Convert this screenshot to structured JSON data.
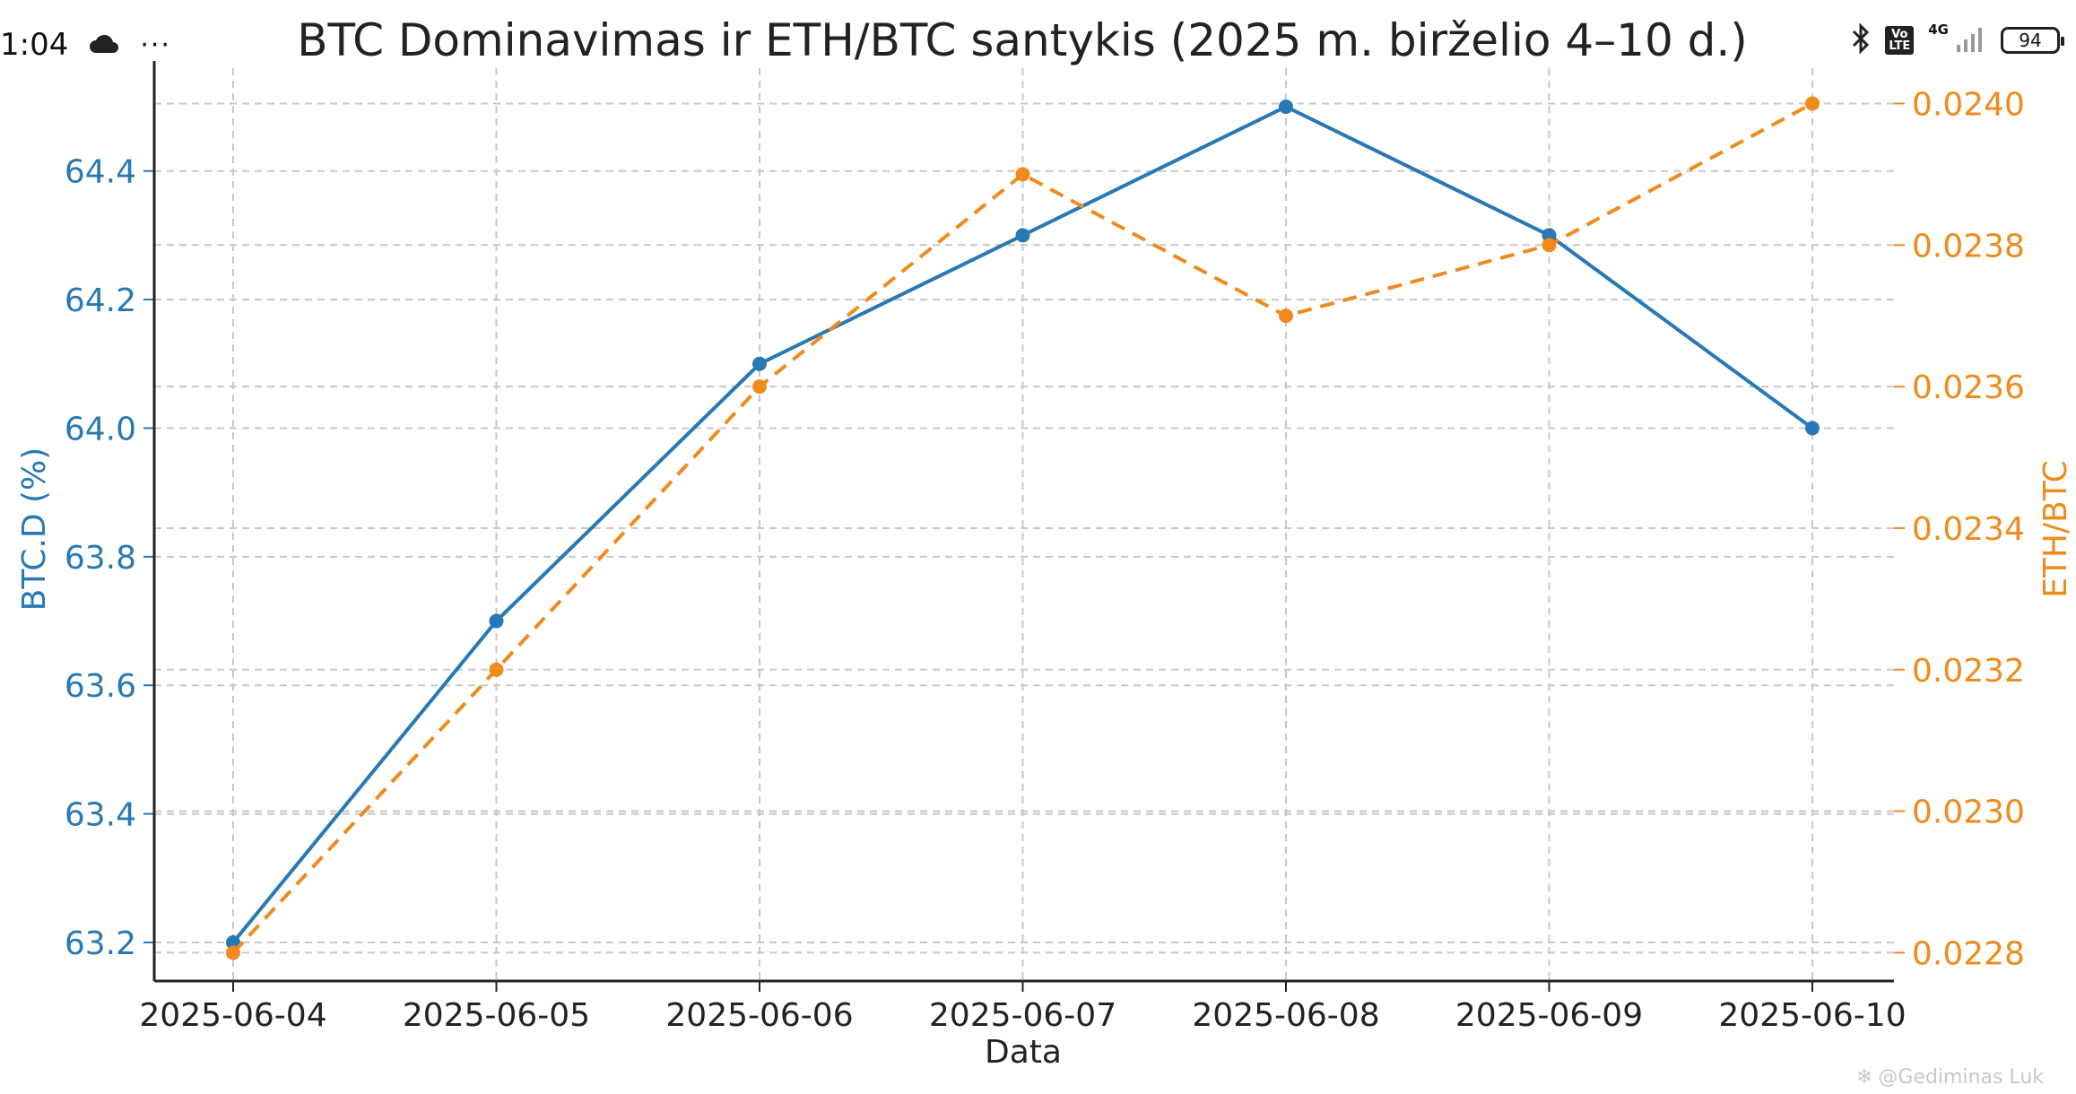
{
  "status_bar": {
    "time": "1:04",
    "cloud_icon": "cloud-icon",
    "more_icon": "more-dots-icon",
    "bluetooth_icon": "bluetooth-icon",
    "volte_top": "Vo",
    "volte_bottom": "LTE",
    "network": "4G",
    "signal_icon": "signal-bars-icon",
    "battery": "94"
  },
  "watermark": "@Gediminas Luk",
  "colors": {
    "btc": "#2878b5",
    "eth": "#f08a1c",
    "grid": "#c8c8c8",
    "axis": "#222222"
  },
  "chart_data": {
    "type": "line",
    "title": "BTC Dominavimas ir ETH/BTC santykis (2025 m. birželio 4–10 d.)",
    "xlabel": "Data",
    "categories": [
      "2025-06-04",
      "2025-06-05",
      "2025-06-06",
      "2025-06-07",
      "2025-06-08",
      "2025-06-09",
      "2025-06-10"
    ],
    "left_axis": {
      "label": "BTC.D (%)",
      "range": [
        63.14,
        64.56
      ],
      "ticks": [
        "63.2",
        "63.4",
        "63.6",
        "63.8",
        "64.0",
        "64.2",
        "64.4"
      ]
    },
    "right_axis": {
      "label": "ETH/BTC",
      "range": [
        0.02276,
        0.02405
      ],
      "ticks": [
        "0.0228",
        "0.0230",
        "0.0232",
        "0.0234",
        "0.0236",
        "0.0238",
        "0.0240"
      ]
    },
    "series": [
      {
        "name": "BTC.D (%)",
        "axis": "left",
        "style": "solid",
        "values": [
          63.2,
          63.7,
          64.1,
          64.3,
          64.5,
          64.3,
          64.0
        ]
      },
      {
        "name": "ETH/BTC",
        "axis": "right",
        "style": "dashed",
        "values": [
          0.0228,
          0.0232,
          0.0236,
          0.0239,
          0.0237,
          0.0238,
          0.024
        ]
      }
    ],
    "grid": true
  }
}
